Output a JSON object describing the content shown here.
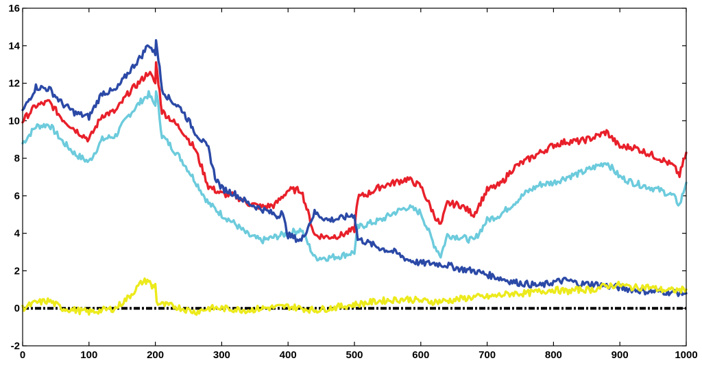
{
  "chart_data": {
    "type": "line",
    "title": "",
    "xlabel": "",
    "ylabel": "",
    "xlim": [
      0,
      1000
    ],
    "ylim": [
      -2,
      16
    ],
    "x_ticks": [
      0,
      100,
      200,
      300,
      400,
      500,
      600,
      700,
      800,
      900,
      1000
    ],
    "y_ticks": [
      -2,
      0,
      2,
      4,
      6,
      8,
      10,
      12,
      14,
      16
    ],
    "grid": false,
    "legend": "none",
    "series": [
      {
        "color": "#2b49a6",
        "x": [
          0,
          20,
          40,
          60,
          80,
          100,
          120,
          140,
          160,
          180,
          190,
          200,
          201,
          210,
          220,
          240,
          260,
          280,
          290,
          300,
          320,
          340,
          360,
          380,
          385,
          390,
          400,
          420,
          440,
          460,
          480,
          500,
          505,
          520,
          540,
          560,
          580,
          600,
          620,
          640,
          660,
          680,
          700,
          720,
          740,
          760,
          780,
          800,
          820,
          840,
          860,
          880,
          900,
          920,
          940,
          960,
          980,
          1000
        ],
        "y": [
          10.5,
          11.8,
          11.7,
          10.9,
          10.4,
          10.2,
          11.5,
          11.6,
          12.6,
          13.5,
          14.1,
          13.5,
          14.4,
          11.7,
          11.2,
          10.6,
          9.4,
          8.5,
          7.0,
          6.4,
          6.1,
          5.6,
          5.3,
          5.0,
          4.9,
          5.2,
          3.9,
          3.6,
          5.1,
          4.7,
          4.8,
          5.0,
          3.7,
          3.5,
          3.2,
          3.0,
          2.6,
          2.4,
          2.4,
          2.3,
          2.1,
          2.0,
          1.8,
          1.6,
          1.4,
          1.3,
          1.2,
          1.4,
          1.5,
          1.3,
          1.3,
          1.2,
          1.1,
          1.0,
          0.9,
          0.9,
          0.85,
          0.8
        ]
      },
      {
        "color": "#e8202a",
        "x": [
          0,
          20,
          40,
          60,
          80,
          100,
          120,
          140,
          160,
          180,
          190,
          200,
          201,
          210,
          220,
          240,
          260,
          280,
          300,
          320,
          340,
          360,
          380,
          400,
          420,
          440,
          460,
          480,
          500,
          505,
          520,
          540,
          560,
          580,
          600,
          620,
          630,
          640,
          660,
          680,
          700,
          720,
          740,
          760,
          780,
          800,
          820,
          840,
          860,
          880,
          900,
          920,
          940,
          960,
          980,
          990,
          1000
        ],
        "y": [
          10.0,
          10.8,
          11.0,
          10.1,
          9.5,
          9.0,
          10.3,
          10.5,
          11.5,
          12.2,
          12.6,
          12.0,
          13.1,
          10.5,
          10.2,
          9.5,
          8.5,
          6.5,
          6.1,
          6.0,
          5.6,
          5.4,
          5.5,
          6.3,
          6.3,
          3.9,
          3.8,
          3.9,
          4.2,
          5.9,
          6.1,
          6.5,
          6.7,
          6.9,
          6.5,
          5.0,
          4.4,
          5.6,
          5.5,
          5.0,
          6.3,
          6.6,
          7.5,
          7.9,
          8.3,
          8.7,
          8.9,
          8.9,
          9.1,
          9.4,
          8.6,
          8.6,
          8.3,
          8.0,
          7.6,
          7.1,
          8.3
        ]
      },
      {
        "color": "#6ccbdc",
        "x": [
          0,
          20,
          40,
          60,
          80,
          100,
          120,
          140,
          160,
          180,
          190,
          200,
          201,
          210,
          220,
          240,
          260,
          280,
          300,
          320,
          340,
          360,
          380,
          400,
          420,
          440,
          460,
          480,
          500,
          505,
          520,
          540,
          560,
          580,
          600,
          620,
          630,
          640,
          660,
          680,
          700,
          720,
          740,
          760,
          780,
          800,
          820,
          840,
          860,
          880,
          900,
          920,
          940,
          960,
          980,
          990,
          1000
        ],
        "y": [
          8.8,
          9.7,
          9.8,
          8.9,
          8.2,
          7.8,
          9.0,
          9.2,
          10.3,
          11.1,
          11.4,
          10.8,
          11.7,
          9.2,
          8.8,
          7.9,
          6.8,
          5.6,
          5.0,
          4.5,
          3.9,
          3.6,
          3.8,
          4.0,
          4.2,
          2.7,
          2.7,
          2.8,
          3.0,
          4.3,
          4.5,
          4.7,
          5.1,
          5.4,
          5.1,
          3.4,
          2.8,
          3.9,
          3.8,
          3.6,
          4.7,
          5.0,
          5.6,
          6.2,
          6.6,
          6.7,
          7.0,
          7.2,
          7.5,
          7.8,
          7.0,
          6.7,
          6.5,
          6.3,
          6.0,
          5.5,
          6.7
        ]
      },
      {
        "color": "#ecea1c",
        "x": [
          0,
          20,
          40,
          60,
          80,
          100,
          120,
          140,
          160,
          170,
          180,
          190,
          195,
          200,
          202,
          210,
          230,
          260,
          280,
          300,
          320,
          340,
          360,
          380,
          400,
          420,
          440,
          460,
          480,
          500,
          520,
          540,
          560,
          580,
          600,
          620,
          640,
          660,
          680,
          700,
          720,
          740,
          760,
          780,
          800,
          820,
          840,
          860,
          880,
          900,
          920,
          940,
          960,
          980,
          1000
        ],
        "y": [
          0.0,
          0.3,
          0.4,
          0.0,
          -0.1,
          -0.2,
          -0.1,
          0.0,
          0.6,
          1.0,
          1.4,
          1.5,
          1.1,
          1.3,
          0.3,
          0.2,
          0.1,
          -0.2,
          0.0,
          0.0,
          -0.05,
          -0.1,
          0.0,
          0.05,
          0.1,
          0.0,
          -0.1,
          0.0,
          0.1,
          0.2,
          0.3,
          0.4,
          0.45,
          0.5,
          0.4,
          0.35,
          0.4,
          0.5,
          0.6,
          0.6,
          0.7,
          0.8,
          0.8,
          0.9,
          1.0,
          0.9,
          1.0,
          1.0,
          1.2,
          1.25,
          1.1,
          1.15,
          1.0,
          0.95,
          1.0
        ]
      },
      {
        "color": "#000000",
        "dashed": true,
        "x": [
          0,
          1000
        ],
        "y": [
          0,
          0
        ]
      }
    ]
  }
}
